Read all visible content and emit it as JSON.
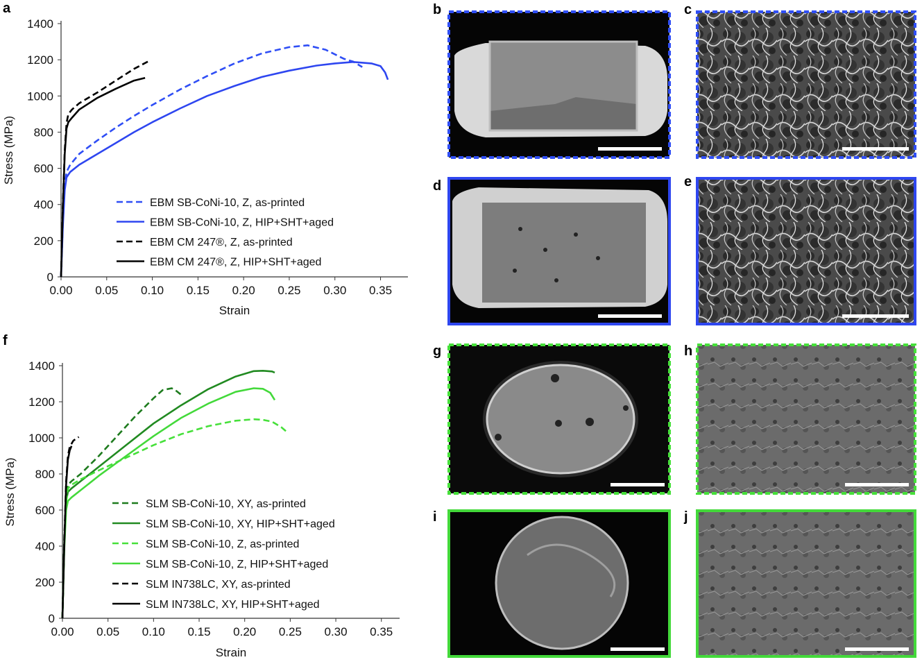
{
  "figure": {
    "panels": [
      "a",
      "b",
      "c",
      "d",
      "e",
      "f",
      "g",
      "h",
      "i",
      "j"
    ]
  },
  "chart_data": [
    {
      "panel": "a",
      "type": "line",
      "xlabel": "Strain",
      "ylabel": "Stress (MPa)",
      "xlim": [
        0,
        0.38
      ],
      "ylim": [
        0,
        1400
      ],
      "xticks": [
        "0.00",
        "0.05",
        "0.10",
        "0.15",
        "0.20",
        "0.25",
        "0.30",
        "0.35"
      ],
      "yticks": [
        "0",
        "200",
        "400",
        "600",
        "800",
        "1000",
        "1200",
        "1400"
      ],
      "legend": "lower-right",
      "grid": false,
      "series": [
        {
          "name": "EBM SB-CoNi-10, Z, as-printed",
          "color": "#2f4ef5",
          "dash": true,
          "x": [
            0,
            0.002,
            0.004,
            0.006,
            0.01,
            0.02,
            0.04,
            0.06,
            0.08,
            0.1,
            0.13,
            0.16,
            0.19,
            0.22,
            0.25,
            0.27,
            0.29,
            0.31,
            0.32,
            0.33
          ],
          "y": [
            0,
            300,
            500,
            580,
            620,
            680,
            755,
            825,
            890,
            950,
            1035,
            1110,
            1180,
            1235,
            1270,
            1280,
            1255,
            1205,
            1190,
            1160
          ]
        },
        {
          "name": "EBM SB-CoNi-10, Z, HIP+SHT+aged",
          "color": "#2e46f0",
          "dash": false,
          "x": [
            0,
            0.002,
            0.004,
            0.006,
            0.01,
            0.02,
            0.04,
            0.06,
            0.08,
            0.1,
            0.13,
            0.16,
            0.19,
            0.22,
            0.25,
            0.28,
            0.3,
            0.32,
            0.34,
            0.35,
            0.355,
            0.358
          ],
          "y": [
            0,
            280,
            480,
            550,
            580,
            620,
            680,
            740,
            800,
            855,
            930,
            1000,
            1055,
            1105,
            1140,
            1168,
            1180,
            1188,
            1180,
            1165,
            1130,
            1090
          ]
        },
        {
          "name": "EBM CM 247®, Z, as-printed",
          "color": "#000000",
          "dash": true,
          "x": [
            0,
            0.002,
            0.004,
            0.006,
            0.008,
            0.012,
            0.02,
            0.04,
            0.06,
            0.08,
            0.095
          ],
          "y": [
            0,
            400,
            700,
            850,
            900,
            925,
            960,
            1020,
            1085,
            1150,
            1190
          ]
        },
        {
          "name": "EBM CM 247®, Z, HIP+SHT+aged",
          "color": "#000000",
          "dash": false,
          "x": [
            0,
            0.002,
            0.004,
            0.006,
            0.008,
            0.012,
            0.02,
            0.04,
            0.06,
            0.08,
            0.092
          ],
          "y": [
            0,
            380,
            680,
            820,
            855,
            880,
            925,
            990,
            1040,
            1085,
            1100
          ]
        }
      ]
    },
    {
      "panel": "f",
      "type": "line",
      "xlabel": "Strain",
      "ylabel": "Stress (MPa)",
      "xlim": [
        0,
        0.37
      ],
      "ylim": [
        0,
        1400
      ],
      "xticks": [
        "0.00",
        "0.05",
        "0.10",
        "0.15",
        "0.20",
        "0.25",
        "0.30",
        "0.35"
      ],
      "yticks": [
        "0",
        "200",
        "400",
        "600",
        "800",
        "1000",
        "1200",
        "1400"
      ],
      "legend": "lower-right",
      "grid": false,
      "series": [
        {
          "name": "SLM SB-CoNi-10, XY, as-printed",
          "color": "#1e7b1e",
          "dash": true,
          "x": [
            0,
            0.002,
            0.004,
            0.006,
            0.01,
            0.02,
            0.04,
            0.06,
            0.08,
            0.1,
            0.11,
            0.12,
            0.125,
            0.13
          ],
          "y": [
            0,
            450,
            680,
            740,
            760,
            800,
            900,
            1010,
            1120,
            1220,
            1265,
            1275,
            1260,
            1240
          ]
        },
        {
          "name": "SLM SB-CoNi-10, XY, HIP+SHT+aged",
          "color": "#218a21",
          "dash": false,
          "x": [
            0,
            0.002,
            0.004,
            0.006,
            0.01,
            0.02,
            0.04,
            0.07,
            0.1,
            0.13,
            0.16,
            0.19,
            0.21,
            0.22,
            0.23,
            0.233
          ],
          "y": [
            0,
            420,
            650,
            700,
            720,
            760,
            840,
            960,
            1080,
            1180,
            1270,
            1340,
            1370,
            1372,
            1368,
            1362
          ]
        },
        {
          "name": "SLM SB-CoNi-10, Z, as-printed",
          "color": "#46e03a",
          "dash": true,
          "x": [
            0,
            0.002,
            0.004,
            0.006,
            0.01,
            0.02,
            0.04,
            0.07,
            0.1,
            0.13,
            0.16,
            0.19,
            0.21,
            0.22,
            0.23,
            0.24,
            0.247
          ],
          "y": [
            0,
            400,
            640,
            720,
            740,
            770,
            820,
            890,
            960,
            1020,
            1065,
            1095,
            1103,
            1100,
            1090,
            1060,
            1030
          ]
        },
        {
          "name": "SLM SB-CoNi-10, Z, HIP+SHT+aged",
          "color": "#43d93a",
          "dash": false,
          "x": [
            0,
            0.002,
            0.004,
            0.006,
            0.01,
            0.02,
            0.04,
            0.07,
            0.1,
            0.13,
            0.16,
            0.19,
            0.21,
            0.22,
            0.228,
            0.233
          ],
          "y": [
            0,
            380,
            600,
            650,
            670,
            710,
            790,
            900,
            1010,
            1110,
            1190,
            1255,
            1275,
            1272,
            1250,
            1210
          ]
        },
        {
          "name": "SLM IN738LC, XY, as-printed",
          "color": "#000000",
          "dash": true,
          "x": [
            0,
            0.002,
            0.004,
            0.006,
            0.008,
            0.012,
            0.018
          ],
          "y": [
            0,
            420,
            760,
            900,
            950,
            985,
            1005
          ]
        },
        {
          "name": "SLM IN738LC, XY, HIP+SHT+aged",
          "color": "#000000",
          "dash": false,
          "x": [
            0,
            0.002,
            0.004,
            0.006,
            0.008,
            0.01
          ],
          "y": [
            0,
            400,
            740,
            880,
            930,
            955
          ]
        }
      ]
    }
  ],
  "images": [
    {
      "panel": "b",
      "border_color": "#2f4ef5",
      "border_style": "dashed"
    },
    {
      "panel": "c",
      "border_color": "#2f4ef5",
      "border_style": "dashed"
    },
    {
      "panel": "d",
      "border_color": "#2e46f0",
      "border_style": "solid"
    },
    {
      "panel": "e",
      "border_color": "#2e46f0",
      "border_style": "solid"
    },
    {
      "panel": "g",
      "border_color": "#46e03a",
      "border_style": "dashed"
    },
    {
      "panel": "h",
      "border_color": "#46e03a",
      "border_style": "dashed"
    },
    {
      "panel": "i",
      "border_color": "#43d93a",
      "border_style": "solid"
    },
    {
      "panel": "j",
      "border_color": "#43d93a",
      "border_style": "solid"
    }
  ]
}
